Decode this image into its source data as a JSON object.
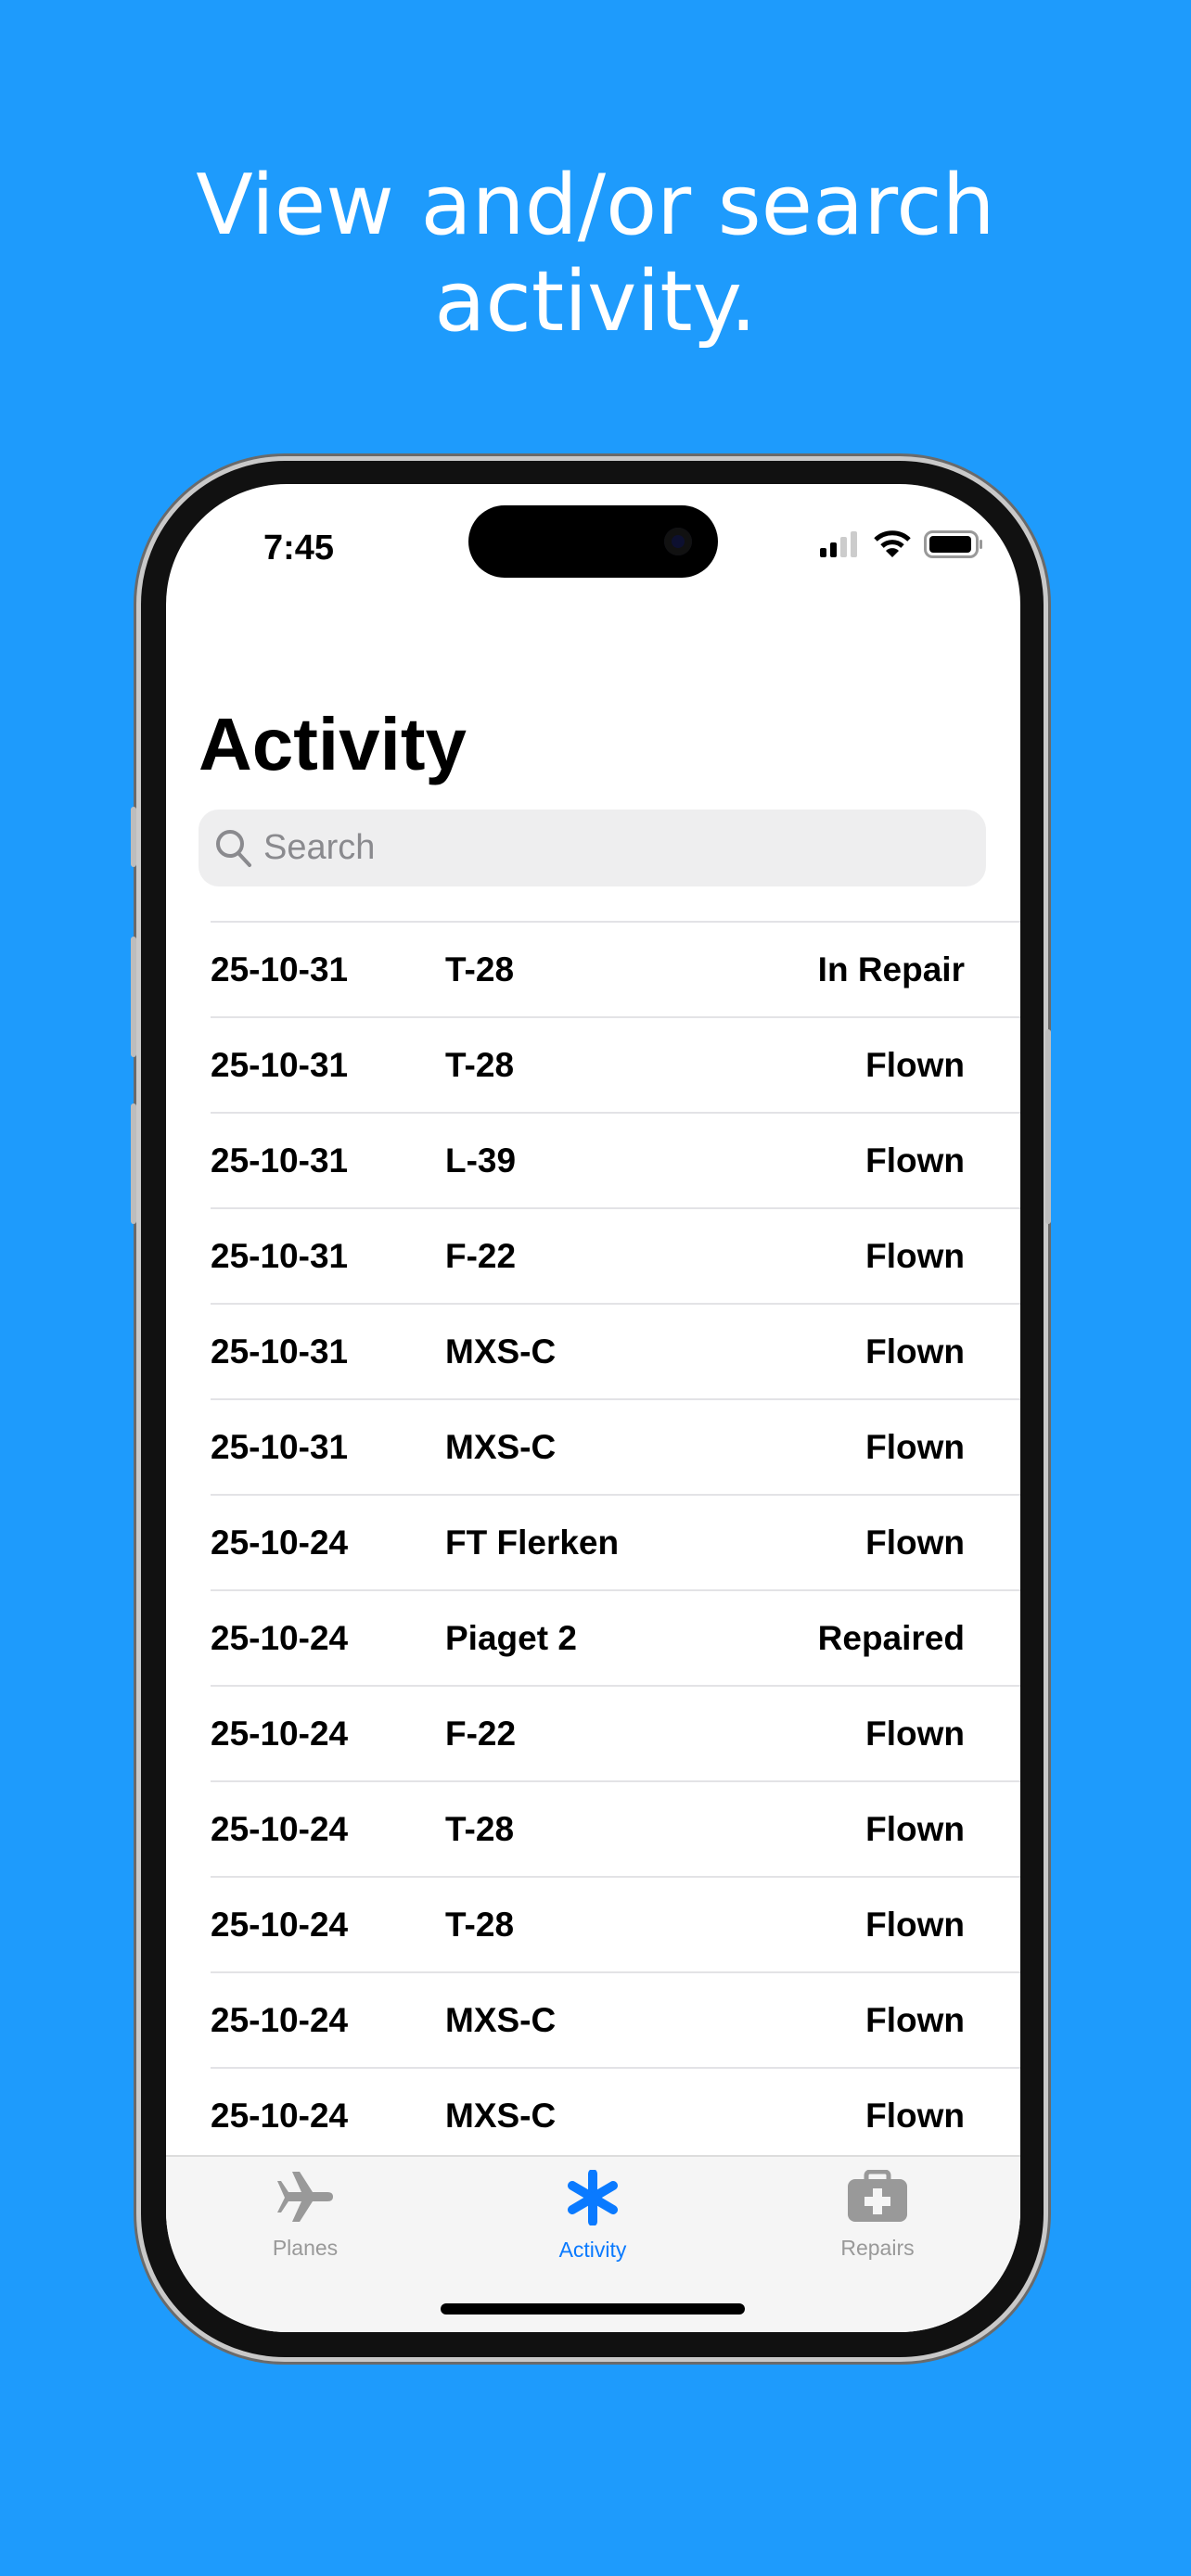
{
  "headline": {
    "line1": "View and/or search",
    "line2": "activity."
  },
  "status_bar": {
    "time": "7:45",
    "icons": [
      "cellular-signal-icon",
      "wifi-icon",
      "battery-icon"
    ]
  },
  "page": {
    "title": "Activity"
  },
  "search": {
    "placeholder": "Search",
    "value": ""
  },
  "rows": [
    {
      "date": "25-10-31",
      "plane": "T-28",
      "status": "In Repair"
    },
    {
      "date": "25-10-31",
      "plane": "T-28",
      "status": "Flown"
    },
    {
      "date": "25-10-31",
      "plane": "L-39",
      "status": "Flown"
    },
    {
      "date": "25-10-31",
      "plane": "F-22",
      "status": "Flown"
    },
    {
      "date": "25-10-31",
      "plane": "MXS-C",
      "status": "Flown"
    },
    {
      "date": "25-10-31",
      "plane": "MXS-C",
      "status": "Flown"
    },
    {
      "date": "25-10-24",
      "plane": "FT Flerken",
      "status": "Flown"
    },
    {
      "date": "25-10-24",
      "plane": "Piaget 2",
      "status": "Repaired"
    },
    {
      "date": "25-10-24",
      "plane": "F-22",
      "status": "Flown"
    },
    {
      "date": "25-10-24",
      "plane": "T-28",
      "status": "Flown"
    },
    {
      "date": "25-10-24",
      "plane": "T-28",
      "status": "Flown"
    },
    {
      "date": "25-10-24",
      "plane": "MXS-C",
      "status": "Flown"
    },
    {
      "date": "25-10-24",
      "plane": "MXS-C",
      "status": "Flown"
    }
  ],
  "tabs": [
    {
      "label": "Planes",
      "icon": "airplane-icon",
      "active": false
    },
    {
      "label": "Activity",
      "icon": "asterisk-icon",
      "active": true
    },
    {
      "label": "Repairs",
      "icon": "medical-kit-icon",
      "active": false
    }
  ],
  "colors": {
    "background": "#1E9BFC",
    "accent": "#0A7AFF",
    "inactive": "#999999"
  }
}
